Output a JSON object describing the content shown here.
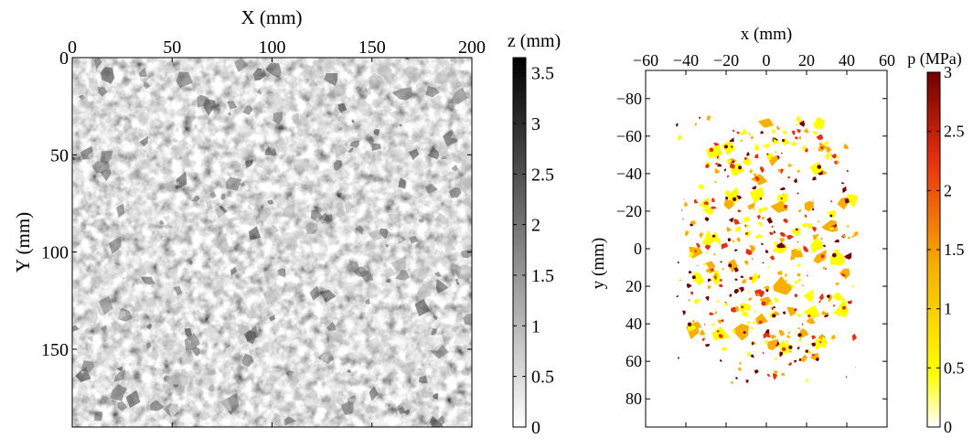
{
  "chart_data": [
    {
      "type": "heatmap",
      "title": "",
      "xlabel": "X (mm)",
      "ylabel": "Y (mm)",
      "x_ticks": [
        0,
        50,
        100,
        150,
        200
      ],
      "y_ticks": [
        0,
        50,
        100,
        150
      ],
      "xlim": [
        0,
        200
      ],
      "ylim": [
        190,
        0
      ],
      "x_axis_position": "top",
      "colorbar": {
        "label": "z (mm)",
        "ticks": [
          0,
          0.5,
          1,
          1.5,
          2,
          2.5,
          3,
          3.5
        ],
        "range": [
          0,
          3.65
        ],
        "colormap": [
          "#ffffff",
          "#000000"
        ]
      }
    },
    {
      "type": "heatmap",
      "title": "",
      "xlabel": "x (mm)",
      "ylabel": "y (mm)",
      "x_ticks": [
        -60,
        -40,
        -20,
        0,
        20,
        40,
        60
      ],
      "y_ticks": [
        -80,
        -60,
        -40,
        -20,
        0,
        20,
        40,
        60,
        80
      ],
      "xlim": [
        -60,
        60
      ],
      "ylim": [
        -95,
        95
      ],
      "x_axis_position": "top",
      "colorbar": {
        "label": "p (MPa)",
        "ticks": [
          0,
          0.5,
          1,
          1.5,
          2,
          2.5,
          3
        ],
        "range": [
          0,
          3
        ],
        "colormap": [
          "#ffffff",
          "#ffff00",
          "#f8b000",
          "#e83010",
          "#700000"
        ]
      }
    }
  ]
}
